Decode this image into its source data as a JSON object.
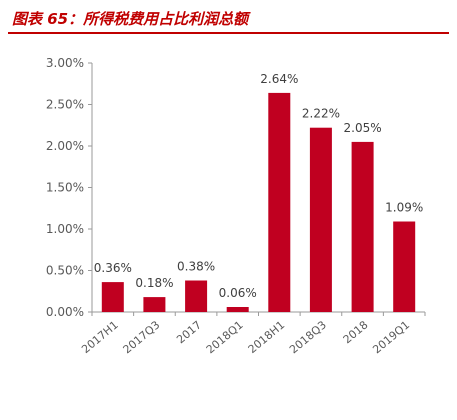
{
  "header": {
    "title": "图表 65：所得税费用占比利润总额"
  },
  "colors": {
    "accent": "#c00000",
    "bar": "#c00020"
  },
  "chart_data": {
    "type": "bar",
    "title": "图表 65：所得税费用占比利润总额",
    "xlabel": "",
    "ylabel": "",
    "categories": [
      "2017H1",
      "2017Q3",
      "2017",
      "2018Q1",
      "2018H1",
      "2018Q3",
      "2018",
      "2019Q1"
    ],
    "values": [
      0.36,
      0.18,
      0.38,
      0.06,
      2.64,
      2.22,
      2.05,
      1.09
    ],
    "value_labels": [
      "0.36%",
      "0.18%",
      "0.38%",
      "0.06%",
      "2.64%",
      "2.22%",
      "2.05%",
      "1.09%"
    ],
    "y_ticks": [
      0,
      0.5,
      1.0,
      1.5,
      2.0,
      2.5,
      3.0
    ],
    "y_tick_labels": [
      "0.00%",
      "0.50%",
      "1.00%",
      "1.50%",
      "2.00%",
      "2.50%",
      "3.00%"
    ],
    "ylim": [
      0,
      3.0
    ],
    "grid": false,
    "legend": "none"
  }
}
